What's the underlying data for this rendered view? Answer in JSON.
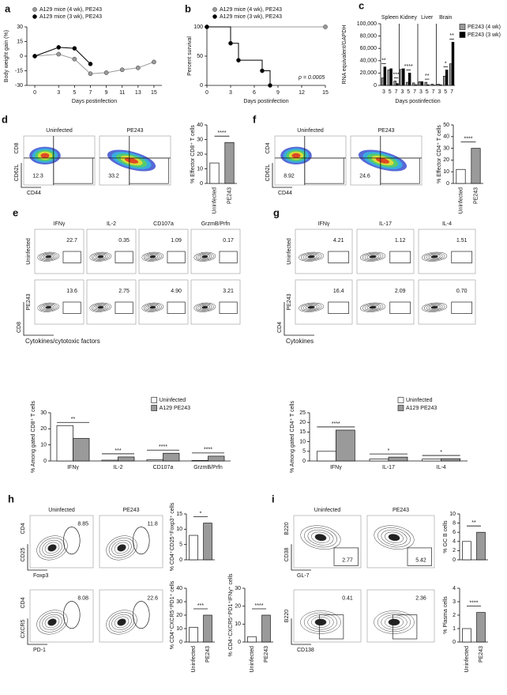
{
  "chart_data": [
    {
      "type": "line",
      "label": "a",
      "y_label": "Body weight gain (%)",
      "x_label": "Days postinfection",
      "x": [
        0,
        3,
        5,
        7,
        9,
        11,
        13,
        15
      ],
      "xlim": [
        -1,
        16
      ],
      "xticks": [
        0,
        3,
        5,
        7,
        9,
        11,
        13,
        15
      ],
      "ylim": [
        -30,
        30
      ],
      "yticks": [
        -30,
        -15,
        0,
        15,
        30
      ],
      "legend": "top",
      "series": [
        {
          "name": "A129 mice (4 wk), PE243",
          "color": "#9a9a9a",
          "values": [
            0,
            2,
            -3,
            -18,
            -17,
            -14,
            -12,
            -6
          ]
        },
        {
          "name": "A129 mice (3 wk), PE243",
          "color": "#000000",
          "values": [
            0,
            9,
            8,
            -8,
            null,
            null,
            null,
            null
          ]
        }
      ]
    },
    {
      "type": "step",
      "label": "b",
      "y_label": "Percent survival",
      "x_label": "Days postinfection",
      "xlim": [
        0,
        15
      ],
      "xticks": [
        0,
        3,
        6,
        9,
        12,
        15
      ],
      "ylim": [
        0,
        100
      ],
      "yticks": [
        0,
        50,
        100
      ],
      "annotation": "p = 0.0005",
      "legend": "top",
      "series": [
        {
          "name": "A129 mice (4 wk), PE243",
          "color": "#9a9a9a",
          "x": [
            0,
            15
          ],
          "values": [
            100,
            100
          ]
        },
        {
          "name": "A129 mice (3 wk), PE243",
          "color": "#000000",
          "x": [
            0,
            3,
            4,
            7,
            8
          ],
          "values": [
            100,
            72,
            43,
            25,
            0
          ]
        }
      ]
    },
    {
      "type": "bar",
      "label": "c",
      "y_label": "RNA equivalent/GAPDH",
      "x_label": "Days postinfection",
      "facets": [
        "Spleen",
        "Kidney",
        "Liver",
        "Brain"
      ],
      "categories": [
        "3",
        "5",
        "7",
        "3",
        "5",
        "7",
        "3",
        "5",
        "7",
        "3",
        "5",
        "7"
      ],
      "ylim": [
        0,
        100000
      ],
      "yticks": [
        0,
        {
          "value": 20000,
          "label": "20,000"
        },
        {
          "value": 40000,
          "label": "40,000"
        },
        {
          "value": 60000,
          "label": "60,000"
        },
        {
          "value": 80000,
          "label": "80,000"
        },
        {
          "value": 100000,
          "label": "100,000"
        }
      ],
      "legend": "right",
      "significance": [
        "**",
        null,
        "***",
        null,
        "****",
        null,
        null,
        "**",
        null,
        null,
        "*",
        "**"
      ],
      "series": [
        {
          "name": "PE243 (4 wk)",
          "color": "#9a9a9a",
          "values": [
            12000,
            25000,
            7000,
            26000,
            5000,
            4000,
            6000,
            5000,
            2000,
            2000,
            15000,
            35000
          ]
        },
        {
          "name": "PE243 (3 wk)",
          "color": "#000000",
          "values": [
            30000,
            27000,
            3000,
            27000,
            20000,
            1000,
            6000,
            1000,
            500,
            1000,
            25000,
            70000
          ]
        }
      ]
    },
    {
      "type": "bar",
      "y_label": "% Effector CD8⁺ T cells",
      "categories": [
        "Uninfected",
        "PE243"
      ],
      "values": [
        14,
        28
      ],
      "colors": [
        "#ffffff",
        "#9a9a9a"
      ],
      "ylim": [
        0,
        40
      ],
      "yticks": [
        0,
        10,
        20,
        30,
        40
      ],
      "significance": "****"
    },
    {
      "type": "bar",
      "y_label": "% Effector CD4⁺ T cells",
      "categories": [
        "Uninfected",
        "PE243"
      ],
      "values": [
        12,
        30
      ],
      "colors": [
        "#ffffff",
        "#9a9a9a"
      ],
      "ylim": [
        0,
        50
      ],
      "yticks": [
        0,
        10,
        20,
        30,
        40,
        50
      ],
      "significance": "****"
    },
    {
      "type": "bar",
      "y_label": "% Among gated CD8⁺ T cells",
      "categories": [
        "IFNγ",
        "IL-2",
        "CD107a",
        "GrzmB/Prfn"
      ],
      "ylim": [
        0,
        30
      ],
      "yticks": [
        0,
        10,
        20,
        30
      ],
      "legend": "upper right",
      "significance": [
        "**",
        "***",
        "****",
        "****"
      ],
      "series": [
        {
          "name": "Uninfected",
          "color": "#ffffff",
          "values": [
            22,
            0.5,
            0.8,
            0.3
          ]
        },
        {
          "name": "A129 PE243",
          "color": "#9a9a9a",
          "values": [
            14,
            2.5,
            4.8,
            3
          ]
        }
      ]
    },
    {
      "type": "bar",
      "y_label": "% Among gated CD4⁺ T cells",
      "categories": [
        "IFNγ",
        "IL-17",
        "IL-4"
      ],
      "ylim": [
        0,
        25
      ],
      "yticks": [
        0,
        5,
        10,
        15,
        20,
        25
      ],
      "legend": "upper right",
      "significance": [
        "****",
        "*",
        "*"
      ],
      "series": [
        {
          "name": "Uninfected",
          "color": "#ffffff",
          "values": [
            5,
            1,
            1
          ]
        },
        {
          "name": "A129 PE243",
          "color": "#9a9a9a",
          "values": [
            16,
            2,
            1.2
          ]
        }
      ]
    },
    {
      "type": "bar",
      "y_label": "% CD4⁺CD25⁺Foxp3⁺ cells",
      "categories": [
        null,
        null
      ],
      "values": [
        8,
        12
      ],
      "colors": [
        "#ffffff",
        "#9a9a9a"
      ],
      "ylim": [
        0,
        15
      ],
      "yticks": [
        0,
        5,
        10,
        15
      ],
      "significance": "*"
    },
    {
      "type": "bar",
      "y_label": "% CD4⁺CXCR5⁺PD1⁺ cells",
      "categories": [
        "Uninfected",
        "PE243"
      ],
      "values": [
        11,
        20
      ],
      "colors": [
        "#ffffff",
        "#9a9a9a"
      ],
      "ylim": [
        0,
        40
      ],
      "yticks": [
        0,
        10,
        20,
        30,
        40
      ],
      "significance": "***"
    },
    {
      "type": "bar",
      "y_label": "% CD4⁺CXCR5⁺PD1⁺IFNγ⁺ cells",
      "categories": [
        "Uninfected",
        "PE243"
      ],
      "values": [
        3,
        15
      ],
      "colors": [
        "#ffffff",
        "#9a9a9a"
      ],
      "ylim": [
        0,
        30
      ],
      "yticks": [
        0,
        10,
        20,
        30
      ],
      "significance": "****"
    },
    {
      "type": "bar",
      "y_label": "% GC B cells",
      "categories": [
        null,
        null
      ],
      "values": [
        4,
        6
      ],
      "colors": [
        "#ffffff",
        "#9a9a9a"
      ],
      "ylim": [
        0,
        10
      ],
      "yticks": [
        0,
        2,
        4,
        6,
        8,
        10
      ],
      "significance": "**"
    },
    {
      "type": "bar",
      "y_label": "% Plasma cells",
      "categories": [
        "Uninfected",
        "PE243"
      ],
      "values": [
        1,
        2.2
      ],
      "colors": [
        "#ffffff",
        "#9a9a9a"
      ],
      "ylim": [
        0,
        4
      ],
      "yticks": [
        0,
        1,
        2,
        3,
        4
      ],
      "significance": "****"
    }
  ],
  "flow_panels": [
    {
      "letter": "d",
      "columns": [
        "Uninfected",
        "PE243"
      ],
      "rows": [
        {
          "y_axis": [
            "CD8",
            "CD62L"
          ],
          "x_axis": "CD44",
          "gates": [
            "12.3",
            "33.2"
          ]
        }
      ]
    },
    {
      "letter": "f",
      "columns": [
        "Uninfected",
        "PE243"
      ],
      "rows": [
        {
          "y_axis": [
            "CD4",
            "CD62L"
          ],
          "x_axis": "CD44",
          "gates": [
            "8.92",
            "24.6"
          ]
        }
      ]
    },
    {
      "letter": "e",
      "columns": [
        "IFNγ",
        "IL-2",
        "CD107a",
        "GrzmB/Prfn"
      ],
      "y_axis": "CD8",
      "x_axis": "Cytokines/cytotoxic factors",
      "rows": [
        {
          "label": "Uninfected",
          "gates": [
            "22.7",
            "0.35",
            "1.09",
            "0.17"
          ]
        },
        {
          "label": "PE243",
          "gates": [
            "13.6",
            "2.75",
            "4.90",
            "3.21"
          ]
        }
      ]
    },
    {
      "letter": "g",
      "columns": [
        "IFNγ",
        "IL-17",
        "IL-4"
      ],
      "y_axis": "CD4",
      "x_axis": "Cytokines",
      "rows": [
        {
          "label": "Uninfected",
          "gates": [
            "4.21",
            "1.12",
            "1.51"
          ]
        },
        {
          "label": "PE243",
          "gates": [
            "16.4",
            "2.09",
            "0.70"
          ]
        }
      ]
    },
    {
      "letter": "h",
      "columns": [
        "Uninfected",
        "PE243"
      ],
      "rows": [
        {
          "y_axis": [
            "CD4",
            "CD25"
          ],
          "x_axis": "Foxp3",
          "gates": [
            "8.85",
            "11.8"
          ]
        },
        {
          "y_axis": [
            "CD4",
            "CXCR5"
          ],
          "x_axis": "PD-1",
          "gates": [
            "8.08",
            "22.6"
          ]
        }
      ]
    },
    {
      "letter": "i",
      "columns": [
        "Uninfected",
        "PE243"
      ],
      "rows": [
        {
          "y_axis": [
            "B220",
            "CD38"
          ],
          "x_axis": "GL-7",
          "gates": [
            "2.77",
            "5.42"
          ]
        },
        {
          "y_axis": [
            "B220"
          ],
          "x_axis": "CD138",
          "gates": [
            "0.41",
            "2.36"
          ]
        }
      ]
    }
  ]
}
